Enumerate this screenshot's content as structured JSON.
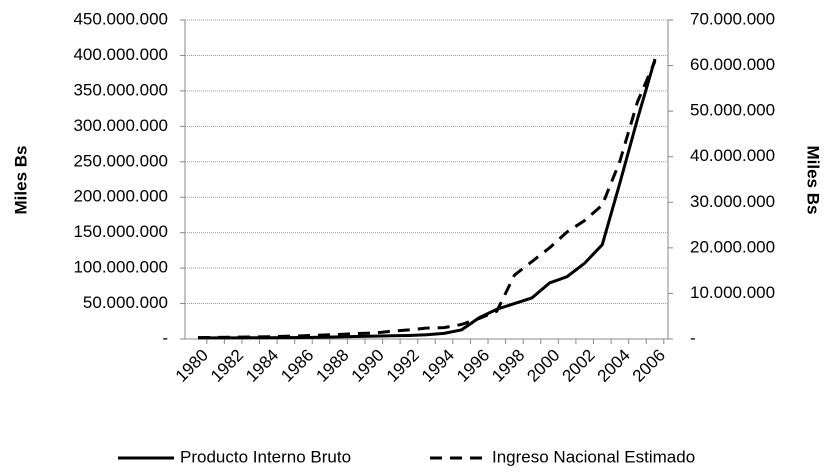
{
  "chart_data": {
    "type": "line",
    "categories": [
      "1980",
      null,
      "1982",
      null,
      "1984",
      null,
      "1986",
      null,
      "1988",
      null,
      "1990",
      null,
      "1992",
      null,
      "1994",
      null,
      "1996",
      null,
      "1998",
      null,
      "2000",
      null,
      "2002",
      null,
      "2004",
      null,
      "2006"
    ],
    "y_label": "Miles Bs",
    "y2_label": "Miles Bs",
    "ylim": [
      0,
      450000000
    ],
    "yticks": [
      {
        "value": 0,
        "label": "-"
      },
      {
        "value": 50000000,
        "label": "50.000.000"
      },
      {
        "value": 100000000,
        "label": "100.000.000"
      },
      {
        "value": 150000000,
        "label": "150.000.000"
      },
      {
        "value": 200000000,
        "label": "200.000.000"
      },
      {
        "value": 250000000,
        "label": "250.000.000"
      },
      {
        "value": 300000000,
        "label": "300.000.000"
      },
      {
        "value": 350000000,
        "label": "350.000.000"
      },
      {
        "value": 400000000,
        "label": "400.000.000"
      },
      {
        "value": 450000000,
        "label": "450.000.000"
      }
    ],
    "y2lim": [
      0,
      70000000
    ],
    "y2ticks": [
      {
        "value": 0,
        "label": "-"
      },
      {
        "value": 10000000,
        "label": "10.000.000"
      },
      {
        "value": 20000000,
        "label": "20.000.000"
      },
      {
        "value": 30000000,
        "label": "30.000.000"
      },
      {
        "value": 40000000,
        "label": "40.000.000"
      },
      {
        "value": 50000000,
        "label": "50.000.000"
      },
      {
        "value": 60000000,
        "label": "60.000.000"
      },
      {
        "value": 70000000,
        "label": "70.000.000"
      }
    ],
    "legend": "bottom",
    "series": [
      {
        "name": "Producto Interno Bruto",
        "color": "#000000",
        "dash": "solid",
        "values": [
          1500000,
          1500000,
          1600000,
          1700000,
          1800000,
          2000000,
          2200000,
          2500000,
          3000000,
          3500000,
          4000000,
          4500000,
          5000000,
          6000000,
          8000000,
          13000000,
          30000000,
          42000000,
          50000000,
          58000000,
          79000000,
          88000000,
          107000000,
          133000000,
          220000000,
          310000000,
          395000000
        ]
      },
      {
        "name": "Ingreso Nacional Estimado",
        "color": "#000000",
        "dash": "dashed",
        "axis": "y2",
        "values": [
          300000,
          350000,
          400000,
          450000,
          500000,
          600000,
          700000,
          850000,
          1000000,
          1200000,
          1300000,
          1700000,
          2000000,
          2400000,
          2500000,
          3200000,
          4500000,
          6100000,
          14000000,
          17000000,
          20000000,
          23500000,
          26000000,
          29400000,
          39000000,
          52000000,
          61000000
        ]
      }
    ]
  }
}
